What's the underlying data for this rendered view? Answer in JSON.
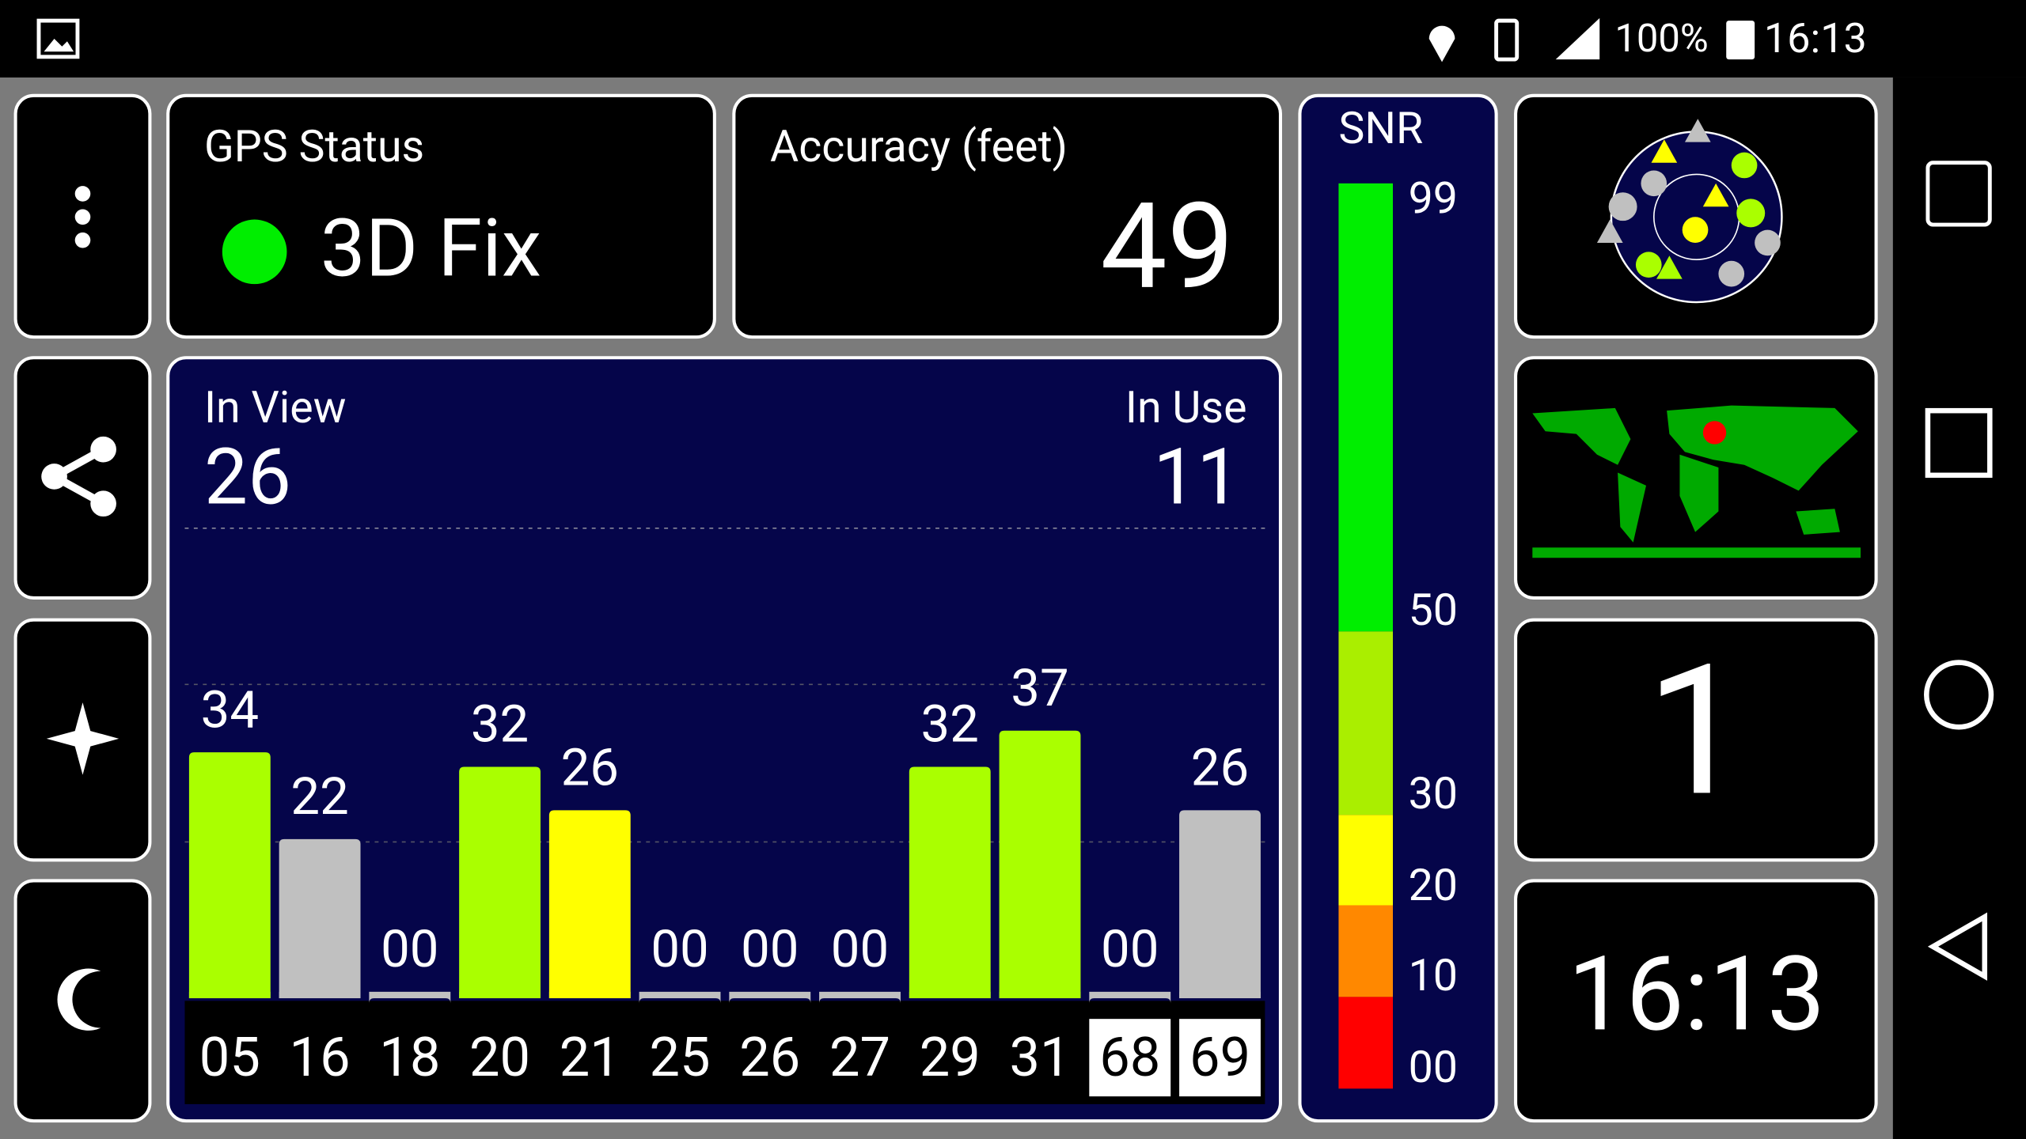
{
  "status_bar": {
    "battery": "100%",
    "time": "16:13"
  },
  "gps_status": {
    "title": "GPS Status",
    "fix": "3D Fix"
  },
  "accuracy": {
    "title": "Accuracy (feet)",
    "value": 49
  },
  "satellites": {
    "in_view_label": "In View",
    "in_view": 26,
    "in_use_label": "In Use",
    "in_use": 11
  },
  "chart_data": {
    "type": "bar",
    "categories": [
      "05",
      "16",
      "18",
      "20",
      "21",
      "25",
      "26",
      "27",
      "29",
      "31",
      "68",
      "69"
    ],
    "values": [
      34,
      22,
      0,
      32,
      26,
      0,
      0,
      0,
      32,
      37,
      0,
      26
    ],
    "value_labels": [
      "34",
      "22",
      "00",
      "32",
      "26",
      "00",
      "00",
      "00",
      "32",
      "37",
      "00",
      "26"
    ],
    "colors": [
      "#aaff00",
      "#c0c0c0",
      "#c0c0c0",
      "#aaff00",
      "#ffff00",
      "#c0c0c0",
      "#c0c0c0",
      "#c0c0c0",
      "#aaff00",
      "#aaff00",
      "#c0c0c0",
      "#c0c0c0"
    ],
    "boxed": [
      false,
      false,
      false,
      false,
      false,
      false,
      false,
      false,
      false,
      false,
      true,
      true
    ],
    "ylim": [
      0,
      65
    ]
  },
  "snr_legend": {
    "title": "SNR",
    "labels": [
      "99",
      "50",
      "30",
      "20",
      "10",
      "00"
    ]
  },
  "tiles": {
    "count": "1",
    "clock": "16:13"
  }
}
